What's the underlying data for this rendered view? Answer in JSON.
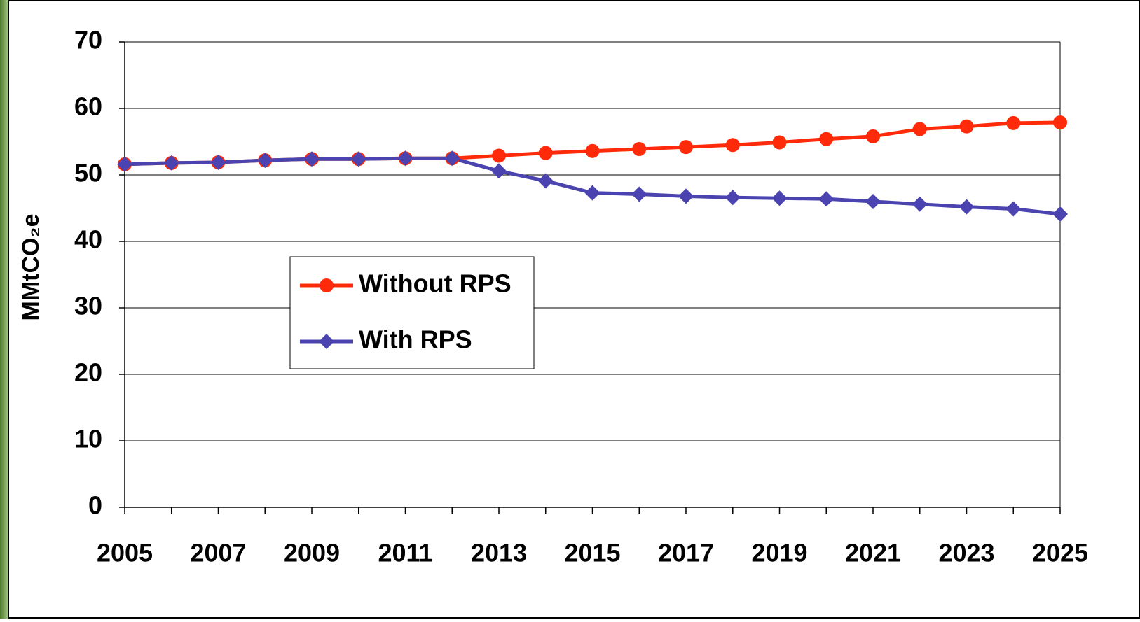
{
  "chart_data": {
    "type": "line",
    "x": [
      2005,
      2006,
      2007,
      2008,
      2009,
      2010,
      2011,
      2012,
      2013,
      2014,
      2015,
      2016,
      2017,
      2018,
      2019,
      2020,
      2021,
      2022,
      2023,
      2024,
      2025
    ],
    "xlim": [
      2005,
      2025
    ],
    "xticks": [
      2005,
      2007,
      2009,
      2011,
      2013,
      2015,
      2017,
      2019,
      2021,
      2023,
      2025
    ],
    "ylim": [
      0,
      70
    ],
    "yticks": [
      0,
      10,
      20,
      30,
      40,
      50,
      60,
      70
    ],
    "ylabel": "MMtCO₂e",
    "grid": true,
    "legend": "center-left",
    "series": [
      {
        "name": "Without RPS",
        "color": "#ff2a0a",
        "marker": "circle",
        "values": [
          51.6,
          51.8,
          51.9,
          52.2,
          52.4,
          52.4,
          52.5,
          52.5,
          52.9,
          53.3,
          53.6,
          53.9,
          54.2,
          54.5,
          54.9,
          55.4,
          55.8,
          56.9,
          57.3,
          57.8,
          57.9
        ]
      },
      {
        "name": "With RPS",
        "color": "#4b44b0",
        "marker": "diamond",
        "values": [
          51.6,
          51.8,
          51.9,
          52.2,
          52.4,
          52.4,
          52.5,
          52.5,
          50.6,
          49.1,
          47.3,
          47.1,
          46.8,
          46.6,
          46.5,
          46.4,
          46.0,
          45.6,
          45.2,
          44.9,
          44.1
        ]
      }
    ]
  }
}
